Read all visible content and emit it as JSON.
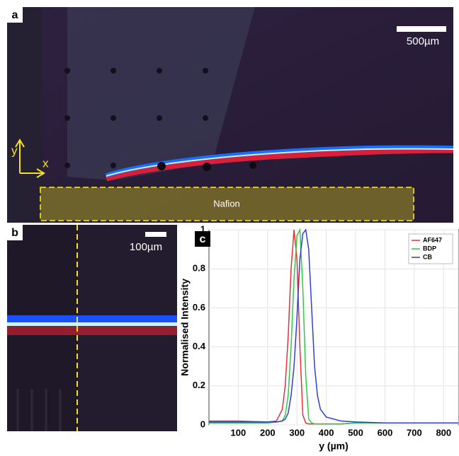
{
  "panels": {
    "a": {
      "label": "a",
      "scale_bar": "500µm",
      "region_label": "Nafion",
      "axis_y": "y",
      "axis_x": "x"
    },
    "b": {
      "label": "b",
      "scale_bar": "100µm"
    }
  },
  "chart_data": {
    "type": "line",
    "label": "c",
    "x_label": "y (µm)",
    "y_label": "Normalised Intensity",
    "x": [
      0,
      100,
      200,
      230,
      250,
      260,
      270,
      280,
      290,
      300,
      310,
      320,
      330,
      340,
      350,
      360,
      370,
      380,
      400,
      450,
      500,
      600,
      700,
      850
    ],
    "series": [
      {
        "name": "AF647",
        "color": "#e8303a",
        "values": [
          0.02,
          0.02,
          0.015,
          0.02,
          0.08,
          0.2,
          0.45,
          0.8,
          1,
          0.85,
          0.4,
          0.05,
          0.01,
          0.005,
          0.005,
          0.005,
          0.005,
          0.005,
          0.005,
          0.005,
          0.01,
          0.01,
          0.01,
          0.01
        ]
      },
      {
        "name": "BDP",
        "color": "#2ecc40",
        "values": [
          0.01,
          0.01,
          0.01,
          0.015,
          0.02,
          0.05,
          0.15,
          0.4,
          0.75,
          0.97,
          1,
          0.7,
          0.25,
          0.03,
          0.01,
          0.005,
          0.005,
          0.005,
          0.005,
          0.005,
          0.01,
          0.01,
          0.01,
          0.01
        ]
      },
      {
        "name": "CB",
        "color": "#2f3fd6",
        "values": [
          0.015,
          0.015,
          0.015,
          0.015,
          0.02,
          0.03,
          0.06,
          0.15,
          0.3,
          0.55,
          0.85,
          0.98,
          1,
          0.9,
          0.6,
          0.3,
          0.15,
          0.08,
          0.04,
          0.02,
          0.015,
          0.01,
          0.01,
          0.01
        ]
      }
    ],
    "xlim": [
      0,
      850
    ],
    "ylim": [
      0,
      1
    ],
    "xticks": [
      100,
      200,
      300,
      400,
      500,
      600,
      700,
      800
    ],
    "yticks": [
      0,
      0.2,
      0.4,
      0.6,
      0.8,
      1
    ],
    "grid": true,
    "legend": "upper right"
  }
}
